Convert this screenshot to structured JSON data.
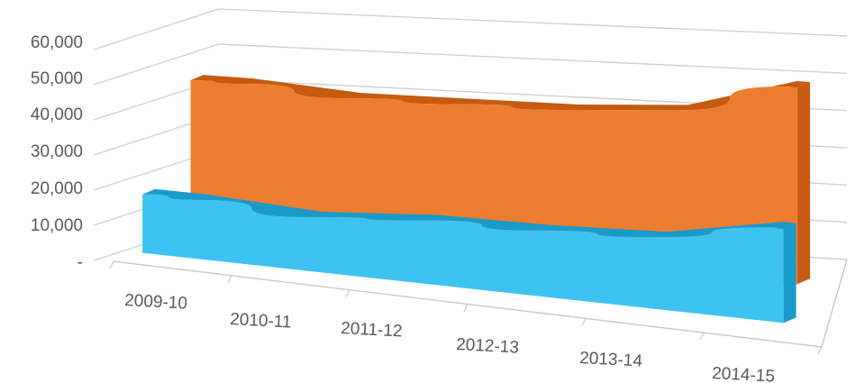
{
  "chart_data": {
    "type": "area",
    "variant": "3d-ribbon",
    "title": "",
    "xlabel": "",
    "ylabel": "",
    "categories": [
      "2009-10",
      "2010-11",
      "2011-12",
      "2012-13",
      "2013-14",
      "2014-15"
    ],
    "ylim": [
      0,
      60000
    ],
    "y_ticks": [
      {
        "value": 0,
        "label": "-"
      },
      {
        "value": 10000,
        "label": "10,000"
      },
      {
        "value": 20000,
        "label": "20,000"
      },
      {
        "value": 30000,
        "label": "30,000"
      },
      {
        "value": 40000,
        "label": "40,000"
      },
      {
        "value": 50000,
        "label": "50,000"
      },
      {
        "value": 60000,
        "label": "60,000"
      }
    ],
    "grid": true,
    "legend": "none",
    "series": [
      {
        "color": "#ED7D31",
        "values": [
          44000,
          42000,
          42500,
          43000,
          45000,
          53500
        ]
      },
      {
        "color": "#3EC3F0",
        "values": [
          17000,
          15500,
          18000,
          18500,
          20000,
          26000
        ]
      }
    ]
  }
}
